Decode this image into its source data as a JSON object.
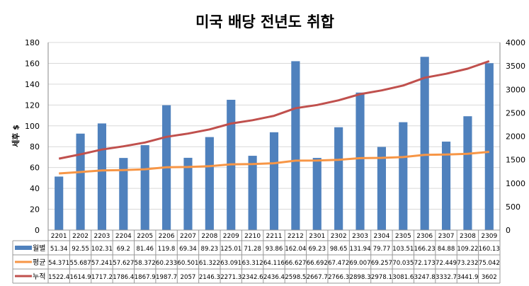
{
  "chart_data": {
    "type": "bar+line",
    "title": "미국 배당 전년도 취합",
    "ylabel": "세후 $",
    "ylim": [
      0,
      180
    ],
    "yticks": [
      0,
      20,
      40,
      60,
      80,
      100,
      120,
      140,
      160,
      180
    ],
    "y2lim": [
      0,
      4000
    ],
    "y2ticks": [
      0,
      500,
      1000,
      1500,
      2000,
      2500,
      3000,
      3500,
      4000
    ],
    "grid": true,
    "legend": "data-table-left",
    "categories": [
      "2201",
      "2202",
      "2203",
      "2204",
      "2205",
      "2206",
      "2207",
      "2208",
      "2209",
      "2210",
      "2211",
      "2212",
      "2301",
      "2302",
      "2303",
      "2304",
      "2305",
      "2306",
      "2307",
      "2308",
      "2309"
    ],
    "series": [
      {
        "name": "월별",
        "type": "bar",
        "axis": "left",
        "color": "#4F81BD",
        "values": [
          51.34,
          92.55,
          102.31,
          69.2,
          81.46,
          119.8,
          69.34,
          89.23,
          125.01,
          71.28,
          93.86,
          162.04,
          69.23,
          98.65,
          131.94,
          79.77,
          103.51,
          166.23,
          84.88,
          109.22,
          160.13
        ]
      },
      {
        "name": "평균",
        "type": "line",
        "axis": "left",
        "color": "#F79646",
        "values": [
          54.371,
          55.687,
          57.241,
          57.627,
          58.372,
          60.233,
          60.501,
          61.322,
          63.091,
          63.312,
          64.116,
          66.627,
          66.692,
          67.472,
          69.007,
          69.257,
          70.035,
          72.173,
          72.449,
          73.232,
          75.042
        ]
      },
      {
        "name": "누적",
        "type": "line",
        "axis": "right",
        "color": "#C0504D",
        "values": [
          1522.4,
          1614.9,
          1717.2,
          1786.4,
          1867.9,
          1987.7,
          2057,
          2146.3,
          2271.3,
          2342.6,
          2436.4,
          2598.5,
          2667.7,
          2766.3,
          2898.3,
          2978.1,
          3081.6,
          3247.8,
          3332.7,
          3441.9,
          3602
        ]
      }
    ]
  }
}
